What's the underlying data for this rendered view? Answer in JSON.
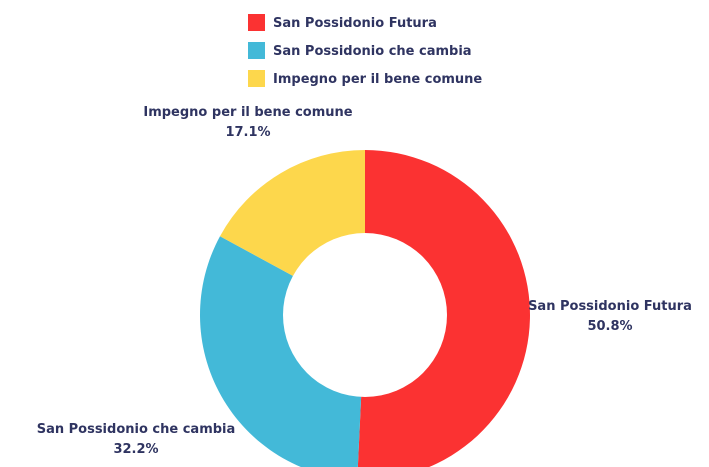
{
  "chart_data": {
    "type": "pie",
    "style": "donut",
    "legend_position": "top-center",
    "labels": [
      "San Possidonio Futura",
      "San Possidonio che cambia",
      "Impegno per il bene comune"
    ],
    "values": [
      50.8,
      32.2,
      17.1
    ],
    "value_labels": [
      "50.8%",
      "32.2%",
      "17.1%"
    ],
    "colors": [
      "#fb3232",
      "#43b9d8",
      "#fdd74c"
    ]
  }
}
